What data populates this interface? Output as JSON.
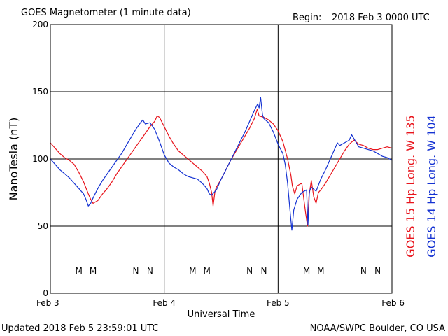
{
  "header": {
    "title": "GOES Magnetometer (1 minute data)",
    "begin_label": "Begin:",
    "begin_value": "2018 Feb 3 0000 UTC"
  },
  "footer": {
    "updated": "Updated 2018 Feb  5 23:59:01 UTC",
    "credit": "NOAA/SWPC Boulder, CO USA"
  },
  "colors": {
    "goes15": "#e8141c",
    "goes14": "#1432d2",
    "grid": "#000000"
  },
  "chart_data": {
    "type": "line",
    "xlabel": "Universal Time",
    "ylabel": "NanoTesla (nT)",
    "x_unit": "hours since 2018 Feb 3 0000 UTC",
    "xlim": [
      0,
      72
    ],
    "ylim": [
      0,
      200
    ],
    "yticks": [
      0,
      50,
      100,
      150,
      200
    ],
    "xticks": [
      {
        "t": 0,
        "label": "Feb 3"
      },
      {
        "t": 24,
        "label": "Feb 4"
      },
      {
        "t": 48,
        "label": "Feb 5"
      },
      {
        "t": 72,
        "label": "Feb 6"
      }
    ],
    "grid": true,
    "series": [
      {
        "name": "GOES 15 Hp  Long. W 135",
        "color": "#e8141c",
        "points": [
          [
            0,
            112
          ],
          [
            1,
            108
          ],
          [
            2,
            104
          ],
          [
            3,
            101
          ],
          [
            4,
            99
          ],
          [
            5,
            96
          ],
          [
            6,
            90
          ],
          [
            7,
            83
          ],
          [
            8,
            74
          ],
          [
            8.5,
            70
          ],
          [
            9,
            67
          ],
          [
            10,
            69
          ],
          [
            11,
            74
          ],
          [
            12,
            78
          ],
          [
            13,
            83
          ],
          [
            14,
            89
          ],
          [
            15,
            94
          ],
          [
            16,
            99
          ],
          [
            17,
            104
          ],
          [
            18,
            109
          ],
          [
            19,
            114
          ],
          [
            20,
            119
          ],
          [
            21,
            124
          ],
          [
            22,
            128
          ],
          [
            22.5,
            132
          ],
          [
            23,
            131
          ],
          [
            24,
            124
          ],
          [
            25,
            117
          ],
          [
            26,
            111
          ],
          [
            27,
            106
          ],
          [
            28,
            103
          ],
          [
            29,
            100
          ],
          [
            30,
            97
          ],
          [
            31,
            94
          ],
          [
            32,
            91
          ],
          [
            33,
            87
          ],
          [
            33.5,
            82
          ],
          [
            34,
            75
          ],
          [
            34.3,
            65
          ],
          [
            34.7,
            76
          ],
          [
            35,
            79
          ],
          [
            36,
            85
          ],
          [
            37,
            92
          ],
          [
            38,
            99
          ],
          [
            39,
            105
          ],
          [
            40,
            111
          ],
          [
            41,
            117
          ],
          [
            42,
            123
          ],
          [
            43,
            130
          ],
          [
            43.6,
            137
          ],
          [
            44,
            132
          ],
          [
            45,
            131
          ],
          [
            46,
            129
          ],
          [
            47,
            126
          ],
          [
            48,
            121
          ],
          [
            49,
            113
          ],
          [
            50,
            100
          ],
          [
            50.7,
            88
          ],
          [
            51,
            80
          ],
          [
            51.5,
            74
          ],
          [
            52,
            80
          ],
          [
            53,
            82
          ],
          [
            53.8,
            60
          ],
          [
            54.2,
            50
          ],
          [
            54.5,
            72
          ],
          [
            55,
            84
          ],
          [
            55.5,
            72
          ],
          [
            56,
            67
          ],
          [
            56.5,
            75
          ],
          [
            57,
            77
          ],
          [
            58,
            82
          ],
          [
            59,
            88
          ],
          [
            60,
            94
          ],
          [
            61,
            100
          ],
          [
            62,
            106
          ],
          [
            63,
            111
          ],
          [
            64,
            114
          ],
          [
            65,
            111
          ],
          [
            66,
            110
          ],
          [
            67,
            108
          ],
          [
            68,
            107
          ],
          [
            69,
            107
          ],
          [
            70,
            108
          ],
          [
            71,
            109
          ],
          [
            72,
            108
          ]
        ]
      },
      {
        "name": "GOES 14 Hp  Long. W 104",
        "color": "#1432d2",
        "points": [
          [
            0,
            100
          ],
          [
            1,
            96
          ],
          [
            2,
            92
          ],
          [
            3,
            89
          ],
          [
            4,
            86
          ],
          [
            5,
            82
          ],
          [
            6,
            78
          ],
          [
            7,
            74
          ],
          [
            7.5,
            70
          ],
          [
            8,
            65
          ],
          [
            8.5,
            67
          ],
          [
            9,
            71
          ],
          [
            10,
            78
          ],
          [
            11,
            84
          ],
          [
            12,
            89
          ],
          [
            13,
            94
          ],
          [
            14,
            99
          ],
          [
            15,
            104
          ],
          [
            16,
            110
          ],
          [
            17,
            116
          ],
          [
            18,
            122
          ],
          [
            19,
            127
          ],
          [
            19.5,
            129
          ],
          [
            20,
            126
          ],
          [
            21,
            127
          ],
          [
            22,
            122
          ],
          [
            23,
            113
          ],
          [
            24,
            103
          ],
          [
            25,
            97
          ],
          [
            26,
            94
          ],
          [
            27,
            92
          ],
          [
            28,
            89
          ],
          [
            29,
            87
          ],
          [
            30,
            86
          ],
          [
            31,
            85
          ],
          [
            32,
            82
          ],
          [
            33,
            78
          ],
          [
            33.5,
            74
          ],
          [
            34,
            73
          ],
          [
            35,
            77
          ],
          [
            36,
            85
          ],
          [
            37,
            92
          ],
          [
            38,
            99
          ],
          [
            39,
            106
          ],
          [
            40,
            113
          ],
          [
            41,
            120
          ],
          [
            42,
            128
          ],
          [
            43,
            136
          ],
          [
            43.7,
            141
          ],
          [
            44,
            138
          ],
          [
            44.3,
            146
          ],
          [
            44.7,
            133
          ],
          [
            45,
            130
          ],
          [
            46,
            127
          ],
          [
            47,
            120
          ],
          [
            48,
            111
          ],
          [
            49,
            104
          ],
          [
            49.5,
            96
          ],
          [
            50,
            82
          ],
          [
            50.5,
            62
          ],
          [
            50.9,
            47
          ],
          [
            51.3,
            62
          ],
          [
            52,
            70
          ],
          [
            53,
            75
          ],
          [
            54,
            77
          ],
          [
            54.3,
            51
          ],
          [
            54.6,
            76
          ],
          [
            55,
            79
          ],
          [
            56,
            76
          ],
          [
            57,
            85
          ],
          [
            58,
            92
          ],
          [
            59,
            100
          ],
          [
            60,
            108
          ],
          [
            60.5,
            112
          ],
          [
            61,
            110
          ],
          [
            62,
            112
          ],
          [
            63,
            114
          ],
          [
            63.5,
            118
          ],
          [
            64,
            115
          ],
          [
            65,
            109
          ],
          [
            66,
            108
          ],
          [
            67,
            107
          ],
          [
            68,
            106
          ],
          [
            69,
            104
          ],
          [
            70,
            102
          ],
          [
            71,
            101
          ],
          [
            72,
            99
          ]
        ]
      }
    ],
    "markers": [
      {
        "t": 6,
        "label": "M",
        "color": "#1432d2"
      },
      {
        "t": 9,
        "label": "M",
        "color": "#e8141c"
      },
      {
        "t": 18,
        "label": "N",
        "color": "#1432d2"
      },
      {
        "t": 21,
        "label": "N",
        "color": "#e8141c"
      },
      {
        "t": 30,
        "label": "M",
        "color": "#1432d2"
      },
      {
        "t": 33,
        "label": "M",
        "color": "#e8141c"
      },
      {
        "t": 42,
        "label": "N",
        "color": "#1432d2"
      },
      {
        "t": 45,
        "label": "N",
        "color": "#e8141c"
      },
      {
        "t": 54,
        "label": "M",
        "color": "#1432d2"
      },
      {
        "t": 57,
        "label": "M",
        "color": "#e8141c"
      },
      {
        "t": 66,
        "label": "N",
        "color": "#1432d2"
      },
      {
        "t": 69,
        "label": "N",
        "color": "#e8141c"
      }
    ]
  }
}
